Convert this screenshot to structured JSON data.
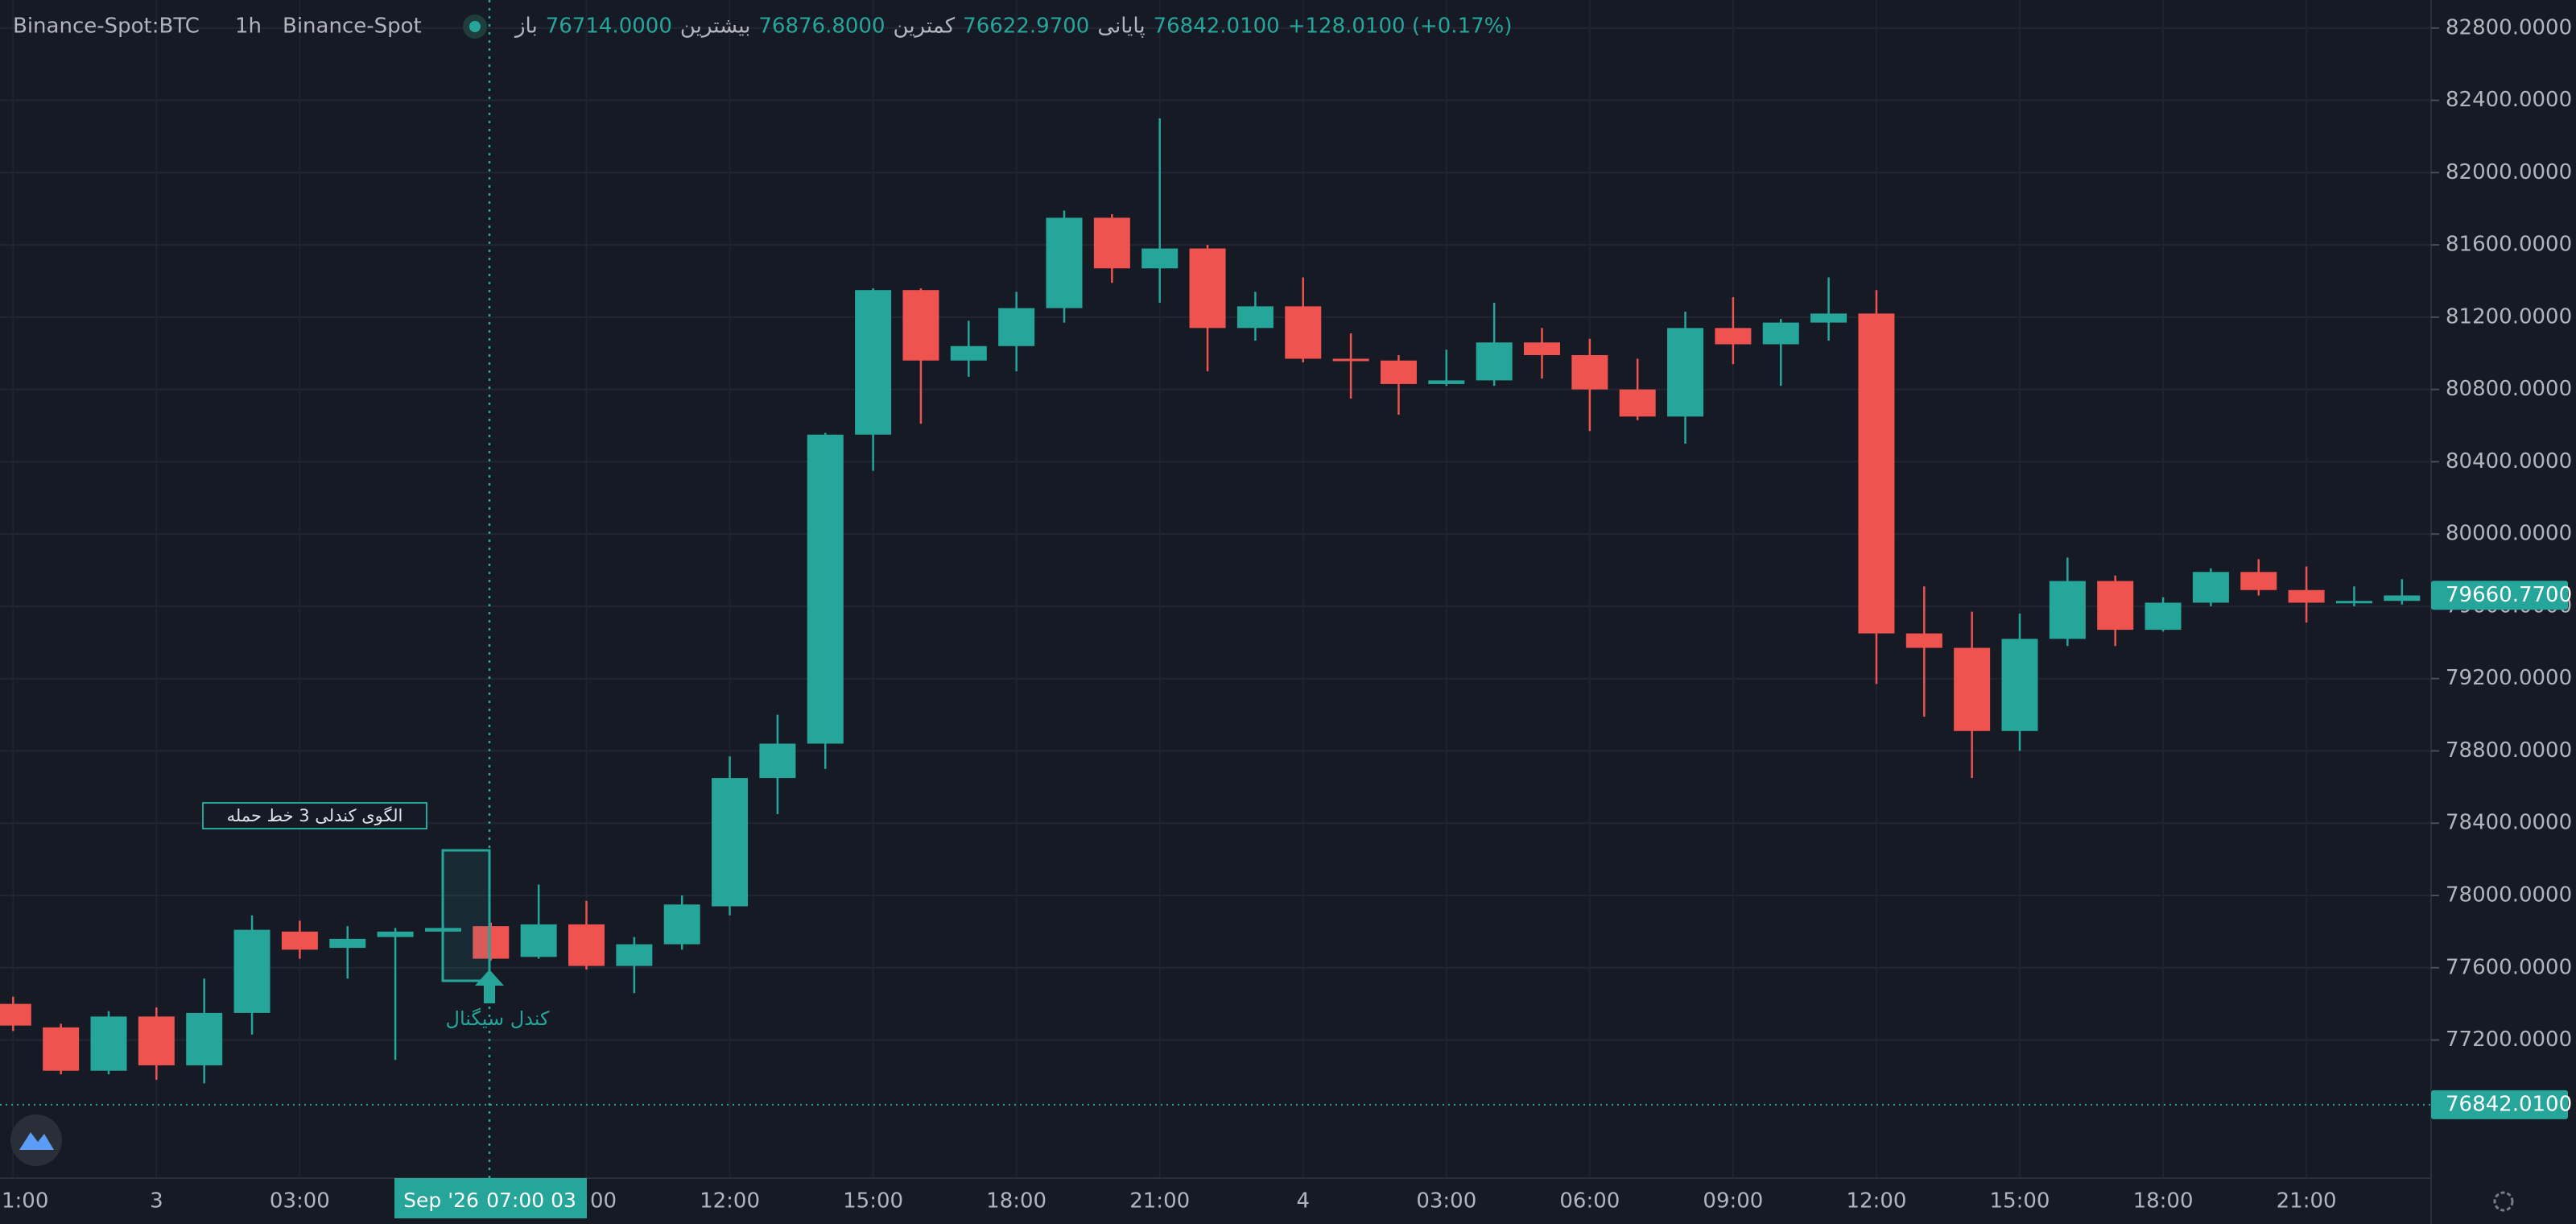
{
  "chart_data": {
    "type": "candlestick",
    "symbol": "Binance-Spot:BTC",
    "interval": "1h",
    "exchange": "Binance-Spot",
    "legend": {
      "open_label": "باز",
      "open": "76714.0000",
      "high_label": "بیشترین",
      "high": "76876.8000",
      "low_label": "کمترین",
      "low": "76622.9700",
      "close_label": "پایانی",
      "close": "76842.0100",
      "change": "+128.0100 (+0.17%)"
    },
    "categories": [
      "1:00",
      null,
      null,
      "3",
      null,
      null,
      "03:00",
      null,
      null,
      null,
      null,
      null,
      "00",
      null,
      null,
      "12:00",
      null,
      null,
      "15:00",
      null,
      null,
      "18:00",
      null,
      null,
      "21:00",
      null,
      null,
      "4",
      null,
      null,
      "03:00",
      null,
      null,
      "06:00",
      null,
      null,
      "09:00",
      null,
      null,
      "12:00",
      null,
      null,
      "15:00",
      null,
      null,
      "18:00",
      null,
      null,
      "21:00",
      null,
      null
    ],
    "open": [
      77400,
      77270,
      77030,
      77330,
      77060,
      77350,
      77800,
      77710,
      77770,
      77800,
      77830,
      77660,
      77840,
      77610,
      77730,
      77940,
      78650,
      78840,
      80550,
      81350,
      80960,
      81040,
      81250,
      81750,
      81470,
      81580,
      81140,
      81260,
      80970,
      80960,
      80830,
      80850,
      81060,
      80990,
      80800,
      80650,
      81140,
      81050,
      81170,
      81220,
      79450,
      79370,
      78910,
      79420,
      79740,
      79470,
      79620,
      79790,
      79690,
      79620,
      79630
    ],
    "high": [
      77440,
      77290,
      77360,
      77380,
      77540,
      77890,
      77860,
      77830,
      77820,
      77840,
      77850,
      78060,
      77970,
      77770,
      78000,
      78770,
      79000,
      80560,
      81360,
      81360,
      81180,
      81340,
      81790,
      81770,
      82300,
      81600,
      81340,
      81420,
      81110,
      80990,
      81020,
      81280,
      81140,
      81080,
      80970,
      81230,
      81310,
      81190,
      81420,
      81350,
      79710,
      79570,
      79560,
      79870,
      79770,
      79650,
      79810,
      79860,
      79820,
      79710,
      79750
    ],
    "low": [
      77250,
      77010,
      77010,
      76980,
      76960,
      77230,
      77650,
      77540,
      77090,
      77790,
      77640,
      77650,
      77590,
      77460,
      77700,
      77890,
      78450,
      78700,
      80350,
      80610,
      80870,
      80900,
      81170,
      81390,
      81280,
      80900,
      81070,
      80950,
      80750,
      80660,
      80820,
      80820,
      80860,
      80570,
      80630,
      80500,
      80940,
      80820,
      81070,
      79170,
      78990,
      78650,
      78800,
      79380,
      79380,
      79460,
      79600,
      79660,
      79510,
      79600,
      79610
    ],
    "close": [
      77280,
      77030,
      77330,
      77060,
      77350,
      77810,
      77700,
      77760,
      77800,
      77820,
      77650,
      77840,
      77610,
      77730,
      77950,
      78650,
      78840,
      80550,
      81350,
      80960,
      81040,
      81250,
      81750,
      81470,
      81580,
      81140,
      81260,
      80970,
      80960,
      80830,
      80850,
      81060,
      80990,
      80800,
      80650,
      81140,
      81050,
      81170,
      81220,
      79450,
      79370,
      78910,
      79420,
      79740,
      79470,
      79620,
      79790,
      79690,
      79620,
      79630,
      79660
    ],
    "up_color": "#26a69a",
    "down_color": "#ef5350",
    "ylim": [
      76436,
      82955
    ],
    "yticks": [
      {
        "value": 77200,
        "label": "77200.0000"
      },
      {
        "value": 77600,
        "label": "77600.0000"
      },
      {
        "value": 78000,
        "label": "78000.0000"
      },
      {
        "value": 78400,
        "label": "78400.0000"
      },
      {
        "value": 78800,
        "label": "78800.0000"
      },
      {
        "value": 79200,
        "label": "79200.0000"
      },
      {
        "value": 79600,
        "label": "79600.0000"
      },
      {
        "value": 80000,
        "label": "80000.0000"
      },
      {
        "value": 80400,
        "label": "80400.0000"
      },
      {
        "value": 80800,
        "label": "80800.0000"
      },
      {
        "value": 81200,
        "label": "81200.0000"
      },
      {
        "value": 81600,
        "label": "81600.0000"
      },
      {
        "value": 82000,
        "label": "82000.0000"
      },
      {
        "value": 82400,
        "label": "82400.0000"
      },
      {
        "value": 82800,
        "label": "82800.0000"
      }
    ],
    "grid": true,
    "last_price": {
      "value": 79660.77,
      "label": "79660.7700"
    },
    "reference_price": {
      "value": 76842.01,
      "label": "76842.0100"
    },
    "crosshair": {
      "date": "Sep '26",
      "time": "07:00 03"
    },
    "pattern_label": "الگوی کندلی 3 خط حمله",
    "signal_label": "کندل سیگنال"
  }
}
